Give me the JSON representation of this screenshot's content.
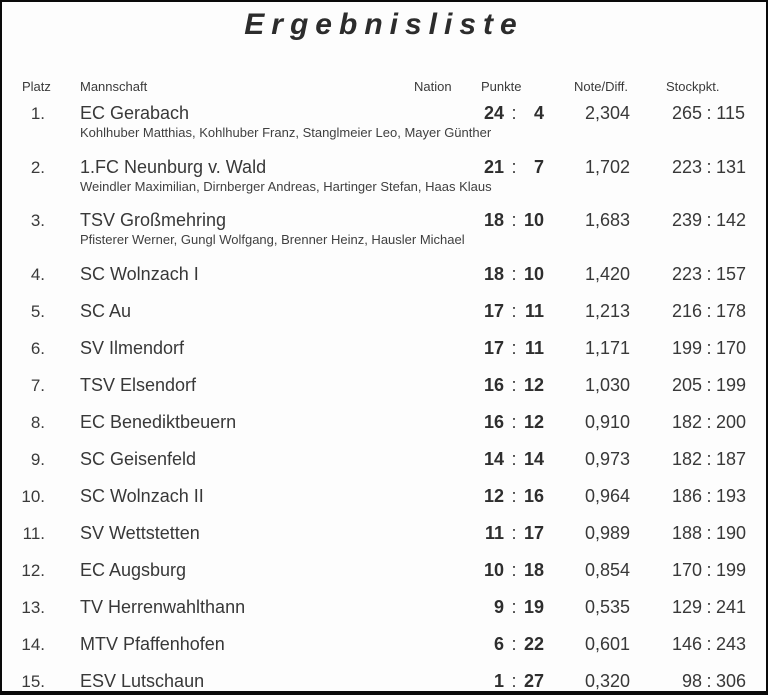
{
  "title": "Ergebnisliste",
  "separator": ":",
  "colors": {
    "text": "#3a3a3a",
    "border": "#000000",
    "background": "#fdfdfd"
  },
  "columns": {
    "platz": "Platz",
    "mannschaft": "Mannschaft",
    "nation": "Nation",
    "punkte": "Punkte",
    "note": "Note/Diff.",
    "stockpkt": "Stockpkt."
  },
  "rows": [
    {
      "rank": "1.",
      "team": "EC Gerabach",
      "players": "Kohlhuber Matthias, Kohlhuber Franz, Stanglmeier Leo, Mayer Günther",
      "punkte_for": "24",
      "punkte_against": "4",
      "note": "2,304",
      "stock_for": "265",
      "stock_against": "115"
    },
    {
      "rank": "2.",
      "team": "1.FC Neunburg v. Wald",
      "players": "Weindler Maximilian, Dirnberger Andreas, Hartinger Stefan, Haas Klaus",
      "punkte_for": "21",
      "punkte_against": "7",
      "note": "1,702",
      "stock_for": "223",
      "stock_against": "131"
    },
    {
      "rank": "3.",
      "team": "TSV Großmehring",
      "players": "Pfisterer Werner, Gungl Wolfgang, Brenner Heinz, Hausler Michael",
      "punkte_for": "18",
      "punkte_against": "10",
      "note": "1,683",
      "stock_for": "239",
      "stock_against": "142"
    },
    {
      "rank": "4.",
      "team": "SC Wolnzach I",
      "players": "",
      "punkte_for": "18",
      "punkte_against": "10",
      "note": "1,420",
      "stock_for": "223",
      "stock_against": "157"
    },
    {
      "rank": "5.",
      "team": "SC Au",
      "players": "",
      "punkte_for": "17",
      "punkte_against": "11",
      "note": "1,213",
      "stock_for": "216",
      "stock_against": "178"
    },
    {
      "rank": "6.",
      "team": "SV Ilmendorf",
      "players": "",
      "punkte_for": "17",
      "punkte_against": "11",
      "note": "1,171",
      "stock_for": "199",
      "stock_against": "170"
    },
    {
      "rank": "7.",
      "team": "TSV Elsendorf",
      "players": "",
      "punkte_for": "16",
      "punkte_against": "12",
      "note": "1,030",
      "stock_for": "205",
      "stock_against": "199"
    },
    {
      "rank": "8.",
      "team": "EC Benediktbeuern",
      "players": "",
      "punkte_for": "16",
      "punkte_against": "12",
      "note": "0,910",
      "stock_for": "182",
      "stock_against": "200"
    },
    {
      "rank": "9.",
      "team": "SC Geisenfeld",
      "players": "",
      "punkte_for": "14",
      "punkte_against": "14",
      "note": "0,973",
      "stock_for": "182",
      "stock_against": "187"
    },
    {
      "rank": "10.",
      "team": "SC Wolnzach II",
      "players": "",
      "punkte_for": "12",
      "punkte_against": "16",
      "note": "0,964",
      "stock_for": "186",
      "stock_against": "193"
    },
    {
      "rank": "11.",
      "team": "SV Wettstetten",
      "players": "",
      "punkte_for": "11",
      "punkte_against": "17",
      "note": "0,989",
      "stock_for": "188",
      "stock_against": "190"
    },
    {
      "rank": "12.",
      "team": "EC Augsburg",
      "players": "",
      "punkte_for": "10",
      "punkte_against": "18",
      "note": "0,854",
      "stock_for": "170",
      "stock_against": "199"
    },
    {
      "rank": "13.",
      "team": "TV Herrenwahlthann",
      "players": "",
      "punkte_for": "9",
      "punkte_against": "19",
      "note": "0,535",
      "stock_for": "129",
      "stock_against": "241"
    },
    {
      "rank": "14.",
      "team": "MTV Pfaffenhofen",
      "players": "",
      "punkte_for": "6",
      "punkte_against": "22",
      "note": "0,601",
      "stock_for": "146",
      "stock_against": "243"
    },
    {
      "rank": "15.",
      "team": "ESV Lutschaun",
      "players": "",
      "punkte_for": "1",
      "punkte_against": "27",
      "note": "0,320",
      "stock_for": "98",
      "stock_against": "306"
    }
  ]
}
